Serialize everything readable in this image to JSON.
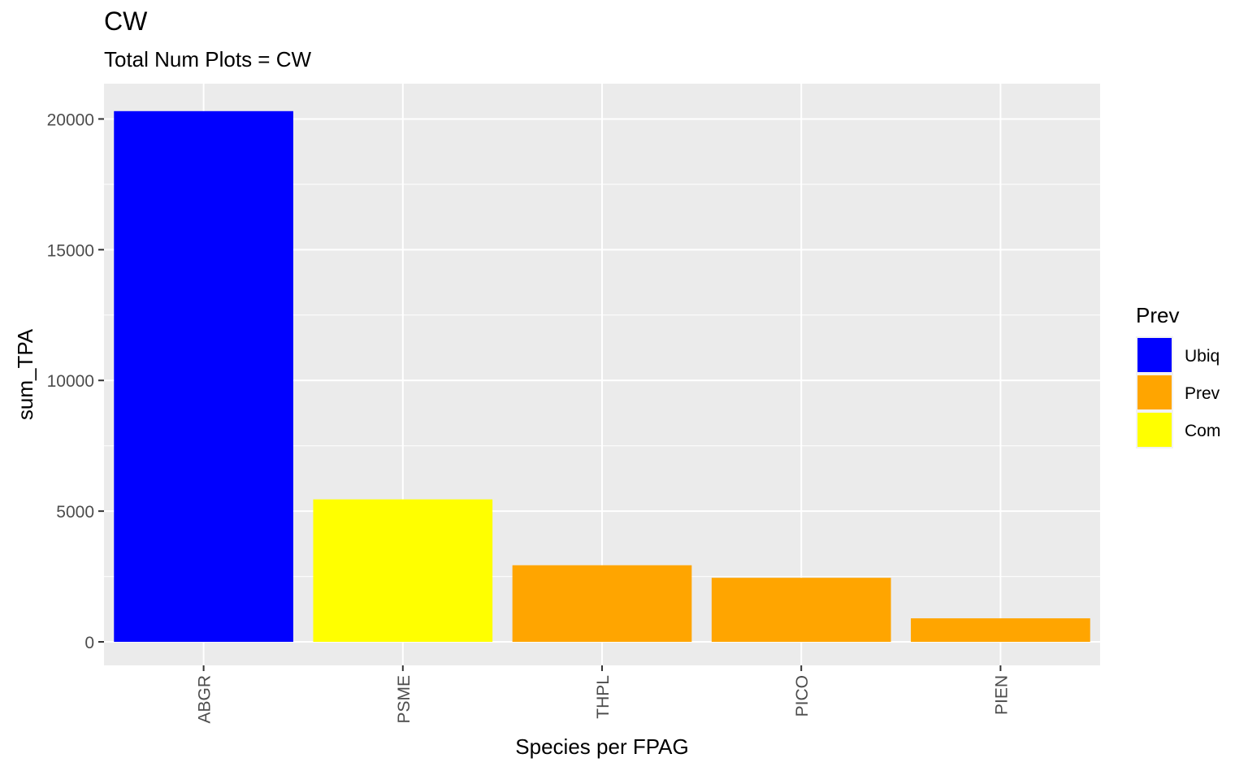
{
  "chart_data": {
    "type": "bar",
    "title": "CW",
    "subtitle": "Total Num Plots = CW",
    "xlabel": "Species per FPAG",
    "ylabel": "sum_TPA",
    "categories": [
      "ABGR",
      "PSME",
      "THPL",
      "PICO",
      "PIEN"
    ],
    "values": [
      20300,
      5450,
      2930,
      2450,
      900
    ],
    "fill_group": [
      "Ubiq",
      "Com",
      "Prev",
      "Prev",
      "Prev"
    ],
    "ylim": [
      -900,
      21350
    ],
    "yticks": [
      0,
      5000,
      10000,
      15000,
      20000
    ],
    "ytick_labels": [
      "0",
      "5000",
      "10000",
      "15000",
      "20000"
    ],
    "grid": true,
    "legend": {
      "title": "Prev",
      "placement": "right",
      "entries": [
        {
          "label": "Ubiq",
          "color": "#0000ff"
        },
        {
          "label": "Prev",
          "color": "#ffa500"
        },
        {
          "label": "Com",
          "color": "#ffff00"
        }
      ]
    }
  }
}
